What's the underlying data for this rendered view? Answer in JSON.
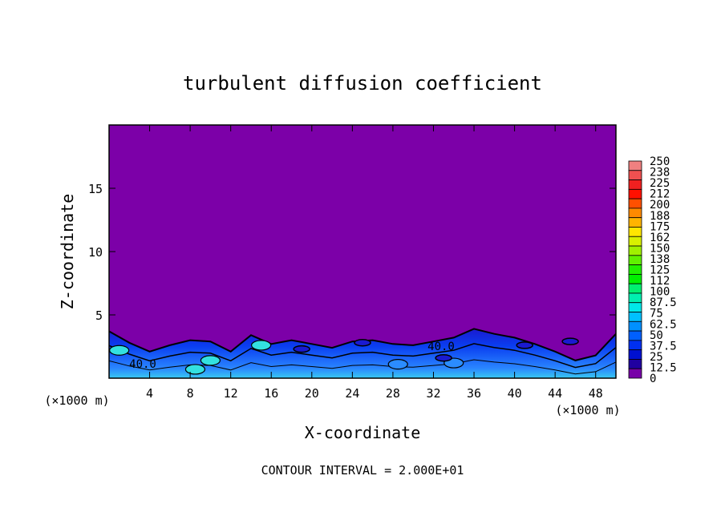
{
  "chart_data": {
    "type": "heatmap",
    "title": "turbulent diffusion coefficient",
    "xlabel": "X-coordinate",
    "ylabel": "Z-coordinate",
    "x_unit": "(×1000 m)",
    "x_unit_right": "(×1000 m)",
    "xlim": [
      0,
      50
    ],
    "ylim": [
      0,
      20
    ],
    "x_ticks": [
      "4",
      "8",
      "12",
      "16",
      "20",
      "24",
      "28",
      "32",
      "36",
      "40",
      "44",
      "48"
    ],
    "y_ticks": [
      "5",
      "10",
      "15"
    ],
    "footer": "CONTOUR INTERVAL = 2.000E+01",
    "contour_labels": [
      "40.0",
      "40.0"
    ],
    "background_value": 0,
    "layer_top": {
      "x": [
        0,
        2,
        4,
        6,
        8,
        10,
        12,
        14,
        16,
        18,
        20,
        22,
        24,
        26,
        28,
        30,
        32,
        34,
        36,
        38,
        40,
        42,
        44,
        46,
        48,
        50
      ],
      "z": [
        3.7,
        2.8,
        2.1,
        2.6,
        3.0,
        2.9,
        2.1,
        3.4,
        2.7,
        3.0,
        2.7,
        2.4,
        2.9,
        3.0,
        2.7,
        2.6,
        2.9,
        3.2,
        3.9,
        3.5,
        3.2,
        2.7,
        2.1,
        1.4,
        1.8,
        3.5
      ]
    },
    "colorbar": {
      "labels": [
        "250",
        "238",
        "225",
        "212",
        "200",
        "188",
        "175",
        "162",
        "150",
        "138",
        "125",
        "112",
        "100",
        "87.5",
        "75",
        "62.5",
        "50",
        "37.5",
        "25",
        "12.5",
        "0"
      ],
      "colors": [
        "#f08080",
        "#f05050",
        "#f02020",
        "#ff1000",
        "#ff5000",
        "#ff8a00",
        "#ffb400",
        "#ffe600",
        "#d8f000",
        "#a0f000",
        "#60f000",
        "#20f000",
        "#00f000",
        "#00f070",
        "#00f0b0",
        "#00e8e8",
        "#00c0ff",
        "#0090ff",
        "#0060ff",
        "#0030f0",
        "#0010d0",
        "#2000a0",
        "#7800a8"
      ]
    },
    "colors": {
      "background": "#7c00a8",
      "low": "#0a2ee8",
      "mid": "#2b8cff",
      "high": "#33e0e0"
    }
  }
}
